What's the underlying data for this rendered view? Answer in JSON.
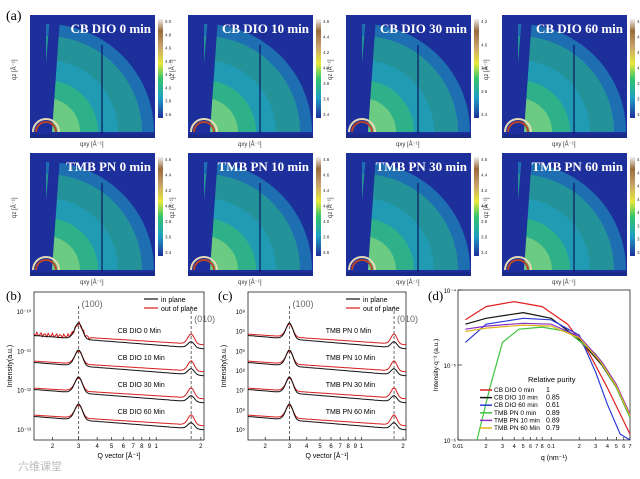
{
  "panel_labels": {
    "a": "(a)",
    "b": "(b)",
    "c": "(c)",
    "d": "(d)"
  },
  "colors": {
    "map_bg": "#1d2f9a",
    "in_plane": "#111111",
    "out_plane": "#d81e1e"
  },
  "gixd_maps": [
    {
      "title": "CB DIO 0 min",
      "cbar_ticks": [
        "5.0",
        "4.8",
        "4.6",
        "4.4",
        "4.2",
        "4.0",
        "3.8",
        "3.6"
      ]
    },
    {
      "title": "CB DIO 10 min",
      "cbar_ticks": [
        "4.6",
        "4.4",
        "4.2",
        "4.0",
        "3.8",
        "3.6",
        "3.4"
      ]
    },
    {
      "title": "CB DIO 30 min",
      "cbar_ticks": [
        "4.2",
        "4.0",
        "3.8",
        "3.6",
        "3.4"
      ]
    },
    {
      "title": "CB DIO 60 min",
      "cbar_ticks": [
        "4.6",
        "4.4",
        "4.2",
        "4.0",
        "3.8",
        "3.6",
        "3.4"
      ]
    },
    {
      "title": "TMB PN 0 min",
      "cbar_ticks": [
        "4.6",
        "4.4",
        "4.2",
        "4.0",
        "3.8",
        "3.6",
        "3.4"
      ]
    },
    {
      "title": "TMB PN 10 min",
      "cbar_ticks": [
        "4.8",
        "4.6",
        "4.4",
        "4.2",
        "4.0",
        "3.8",
        "3.6"
      ]
    },
    {
      "title": "TMB PN 30 min",
      "cbar_ticks": [
        "4.6",
        "4.4",
        "4.2",
        "4.0",
        "3.8",
        "3.6",
        "3.4"
      ]
    },
    {
      "title": "TMB PN 60 min",
      "cbar_ticks": [
        "4.8",
        "4.6",
        "4.4",
        "4.2",
        "4.0",
        "3.8",
        "3.6",
        "3.4"
      ]
    }
  ],
  "map_axes": {
    "ylabel": "qz [Å⁻¹]",
    "xlabel": "qxy [Å⁻¹]"
  },
  "chart_data": [
    {
      "type": "line",
      "panel": "b",
      "xlabel": "Q vector [Å⁻¹]",
      "ylabel": "Intensity(a.u.)",
      "xlim": [
        0.15,
        2.1
      ],
      "xscale": "log",
      "x_ticks": [
        "2",
        "3",
        "4",
        "5",
        "6",
        "7",
        "8",
        "9",
        "1",
        "2"
      ],
      "y_ticks": [
        "10⁻¹⁰",
        "10⁻¹¹",
        "10⁻¹²",
        "10⁻¹³"
      ],
      "legend": [
        "in plane",
        "out of plane"
      ],
      "peaks": [
        "(100)",
        "(010)"
      ],
      "peak_q": [
        0.3,
        1.72
      ],
      "curves": [
        "CB DIO 0 Min",
        "CB DIO 10 Min",
        "CB DIO 30 Min",
        "CB DIO 60 Min"
      ]
    },
    {
      "type": "line",
      "panel": "c",
      "xlabel": "Q vector [Å⁻¹]",
      "ylabel": "Intensity(a.u.)",
      "xlim": [
        0.15,
        2.1
      ],
      "xscale": "log",
      "x_ticks": [
        "2",
        "3",
        "4",
        "5",
        "6",
        "7",
        "8",
        "9",
        "1",
        "2"
      ],
      "y_ticks": [
        "10⁸",
        "10⁹",
        "10⁹",
        "10⁸",
        "10⁷",
        "10⁶",
        "10⁵"
      ],
      "legend": [
        "in plane",
        "out of plane"
      ],
      "peaks": [
        "(100)",
        "(010)"
      ],
      "peak_q": [
        0.3,
        1.72
      ],
      "curves": [
        "TMB PN 0 Min",
        "TMB PN 10 Min",
        "TMB PN 30 Min",
        "TMB PN 60 Min"
      ]
    },
    {
      "type": "line",
      "panel": "d",
      "xlabel": "q (nm⁻¹)",
      "ylabel": "Intensity·q⁻² (a.u.)",
      "xscale": "log",
      "yscale": "log",
      "xlim": [
        0.01,
        0.7
      ],
      "ylim": [
        1e-06,
        0.0001
      ],
      "x_ticks": [
        "0.01",
        "2",
        "3",
        "4",
        "5",
        "6",
        "7",
        "8",
        "0.1",
        "2",
        "3",
        "4",
        "5",
        "6",
        "7"
      ],
      "y_ticks": [
        "10⁻⁴",
        "10⁻⁵",
        "10⁻⁶"
      ],
      "legend_title": "Relative purity",
      "series": [
        {
          "name": "CB DIO 0 min",
          "purity": "1",
          "color": "#e02020",
          "points": [
            [
              0.012,
              4e-05
            ],
            [
              0.02,
              6e-05
            ],
            [
              0.04,
              7e-05
            ],
            [
              0.08,
              6e-05
            ],
            [
              0.15,
              3.5e-05
            ],
            [
              0.25,
              1.5e-05
            ],
            [
              0.4,
              5e-06
            ],
            [
              0.7,
              1.2e-06
            ]
          ]
        },
        {
          "name": "CB DIO 10 min",
          "purity": "0.85",
          "color": "#111111",
          "points": [
            [
              0.012,
              3.5e-05
            ],
            [
              0.02,
              4.2e-05
            ],
            [
              0.05,
              5e-05
            ],
            [
              0.1,
              4.2e-05
            ],
            [
              0.2,
              2.2e-05
            ],
            [
              0.35,
              1e-05
            ],
            [
              0.5,
              5e-06
            ],
            [
              0.7,
              2e-06
            ]
          ]
        },
        {
          "name": "CB DIO 60 min",
          "purity": "0.61",
          "color": "#2c3bd6",
          "points": [
            [
              0.012,
              2e-05
            ],
            [
              0.02,
              3.5e-05
            ],
            [
              0.05,
              4.2e-05
            ],
            [
              0.1,
              4e-05
            ],
            [
              0.2,
              2.5e-05
            ],
            [
              0.3,
              8e-06
            ],
            [
              0.4,
              3e-06
            ],
            [
              0.55,
              1.2e-06
            ],
            [
              0.7,
              7e-07
            ]
          ]
        },
        {
          "name": "TMB PN 0 min",
          "purity": "0.89",
          "color": "#3fc43f",
          "points": [
            [
              0.016,
              6e-07
            ],
            [
              0.022,
              5e-06
            ],
            [
              0.03,
              2e-05
            ],
            [
              0.045,
              3e-05
            ],
            [
              0.08,
              3.2e-05
            ],
            [
              0.15,
              2.8e-05
            ],
            [
              0.3,
              1.4e-05
            ],
            [
              0.5,
              5e-06
            ],
            [
              0.7,
              2e-06
            ]
          ]
        },
        {
          "name": "TMB PN 10 min",
          "purity": "0.89",
          "color": "#8b2fc9",
          "points": [
            [
              0.012,
              3e-05
            ],
            [
              0.02,
              3.3e-05
            ],
            [
              0.05,
              3.6e-05
            ],
            [
              0.1,
              3.5e-05
            ],
            [
              0.2,
              2.4e-05
            ],
            [
              0.35,
              1.1e-05
            ],
            [
              0.5,
              5.5e-06
            ],
            [
              0.7,
              2.2e-06
            ]
          ]
        },
        {
          "name": "TMB PN 60 Min",
          "purity": "0.79",
          "color": "#e0b51c",
          "points": [
            [
              0.012,
              2.8e-05
            ],
            [
              0.02,
              3.1e-05
            ],
            [
              0.05,
              3.4e-05
            ],
            [
              0.1,
              3.3e-05
            ],
            [
              0.2,
              2.3e-05
            ],
            [
              0.35,
              1.05e-05
            ],
            [
              0.5,
              5.2e-06
            ],
            [
              0.7,
              2.1e-06
            ]
          ]
        }
      ]
    }
  ],
  "watermark": "六维课堂"
}
